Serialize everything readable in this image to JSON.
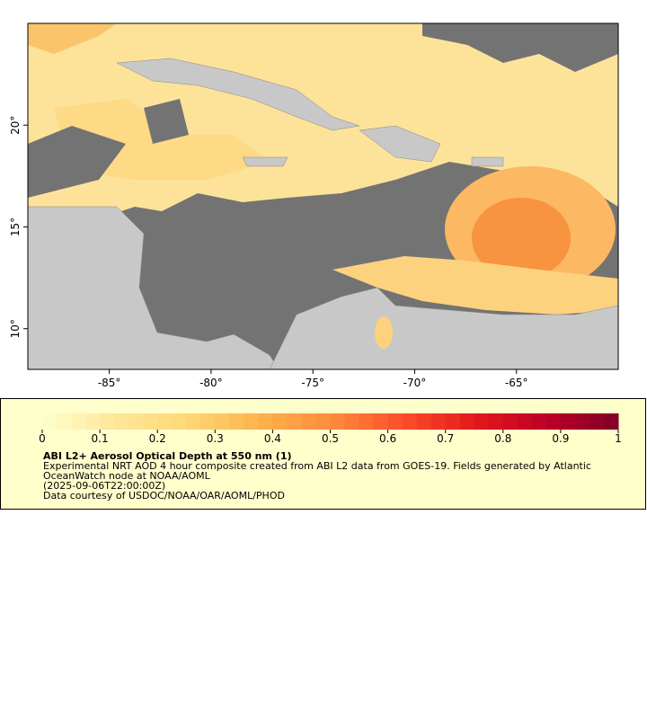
{
  "map": {
    "xlim": [
      -89,
      -60
    ],
    "ylim": [
      8,
      25
    ],
    "xticks": [
      {
        "value": -85,
        "label": "-85°"
      },
      {
        "value": -80,
        "label": "-80°"
      },
      {
        "value": -75,
        "label": "-75°"
      },
      {
        "value": -70,
        "label": "-70°"
      },
      {
        "value": -65,
        "label": "-65°"
      }
    ],
    "yticks": [
      {
        "value": 10,
        "label": "10°"
      },
      {
        "value": 15,
        "label": "15°"
      },
      {
        "value": 20,
        "label": "20°"
      }
    ]
  },
  "colorbar": {
    "lim": [
      0,
      1
    ],
    "ticks": [
      0,
      0.1,
      0.2,
      0.3,
      0.4,
      0.5,
      0.6,
      0.7,
      0.8,
      0.9,
      1
    ],
    "colors": [
      "#ffffcc",
      "#fee79a",
      "#fed976",
      "#feb24c",
      "#fd8d3c",
      "#fc4e2a",
      "#e31a1c",
      "#bd0026",
      "#800026"
    ]
  },
  "legend": {
    "title": "ABI L2+ Aerosol Optical Depth at 550 nm (1)",
    "lines": [
      "Experimental NRT AOD 4 hour composite created from ABI L2 data from GOES-19. Fields generated by Atlantic",
      "OceanWatch node at NOAA/AOML",
      "(2025-09-06T22:00:00Z)",
      "Data courtesy of USDOC/NOAA/OAR/AOML/PHOD"
    ]
  }
}
